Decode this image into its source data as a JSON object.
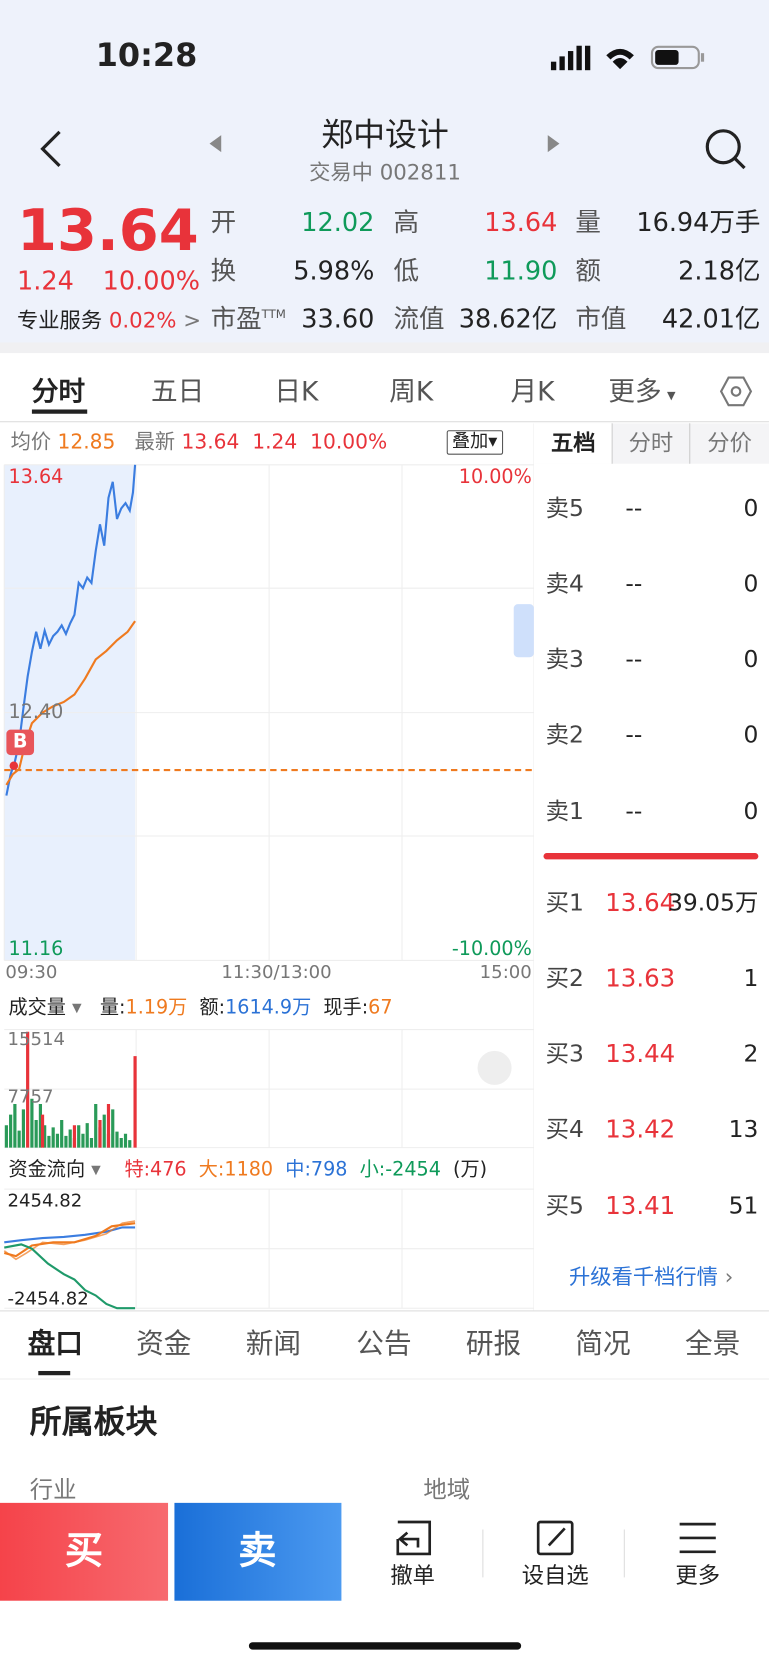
{
  "status": {
    "time": "10:28"
  },
  "header": {
    "title": "郑中设计",
    "subtitle": "交易中 002811"
  },
  "quote": {
    "price": "13.64",
    "change": "1.24",
    "pct": "10.00%",
    "stats": [
      {
        "label": "开",
        "value": "12.02"
      },
      {
        "label": "高",
        "value": "13.64"
      },
      {
        "label": "量",
        "value": "16.94万手"
      },
      {
        "label": "换",
        "value": "5.98%"
      },
      {
        "label": "低",
        "value": "11.90"
      },
      {
        "label": "额",
        "value": "2.18亿"
      },
      {
        "label": "市盈",
        "sup": "TTM",
        "value": "33.60"
      },
      {
        "label": "流值",
        "value": "38.62亿"
      },
      {
        "label": "市值",
        "value": "42.01亿"
      }
    ],
    "service": {
      "label": "专业服务",
      "value": "0.02%",
      "arrow": ">"
    }
  },
  "tabs": [
    "分时",
    "五日",
    "日K",
    "周K",
    "月K",
    "更多"
  ],
  "chart": {
    "avg_label": "均价",
    "avg": "12.85",
    "latest_label": "最新",
    "latest": "13.64",
    "latest_change": "1.24",
    "latest_pct": "10.00%",
    "overlay": "叠加",
    "axis": {
      "high": "13.64",
      "high_pct": "10.00%",
      "mid": "12.40",
      "low": "11.16",
      "low_pct": "-10.00%",
      "times": [
        "09:30",
        "11:30/13:00",
        "15:00"
      ]
    },
    "marker": "B"
  },
  "volume": {
    "title": "成交量",
    "vol_label": "量:",
    "vol": "1.19万",
    "amt_label": "额:",
    "amt": "1614.9万",
    "hand_label": "现手:",
    "hand": "67",
    "max": "15514",
    "mid": "7757"
  },
  "flow": {
    "title": "资金流向",
    "items": [
      {
        "label": "特:",
        "value": "476"
      },
      {
        "label": "大:",
        "value": "1180"
      },
      {
        "label": "中:",
        "value": "798"
      },
      {
        "label": "小:",
        "value": "-2454"
      }
    ],
    "unit": "(万)",
    "max": "2454.82",
    "min": "-2454.82"
  },
  "orderbook": {
    "tabs": [
      "五档",
      "分时",
      "分价"
    ],
    "asks": [
      {
        "label": "卖5",
        "price": "--",
        "qty": "0"
      },
      {
        "label": "卖4",
        "price": "--",
        "qty": "0"
      },
      {
        "label": "卖3",
        "price": "--",
        "qty": "0"
      },
      {
        "label": "卖2",
        "price": "--",
        "qty": "0"
      },
      {
        "label": "卖1",
        "price": "--",
        "qty": "0"
      }
    ],
    "bids": [
      {
        "label": "买1",
        "price": "13.64",
        "qty": "39.05万"
      },
      {
        "label": "买2",
        "price": "13.63",
        "qty": "1"
      },
      {
        "label": "买3",
        "price": "13.44",
        "qty": "2"
      },
      {
        "label": "买4",
        "price": "13.42",
        "qty": "13"
      },
      {
        "label": "买5",
        "price": "13.41",
        "qty": "51"
      }
    ],
    "upgrade": "升级看千档行情"
  },
  "bottom_tabs": [
    "盘口",
    "资金",
    "新闻",
    "公告",
    "研报",
    "简况",
    "全景"
  ],
  "section": {
    "title": "所属板块",
    "industry": "行业",
    "region": "地域"
  },
  "actions": {
    "buy": "买",
    "sell": "卖",
    "items": [
      "撤单",
      "设自选",
      "更多"
    ]
  }
}
